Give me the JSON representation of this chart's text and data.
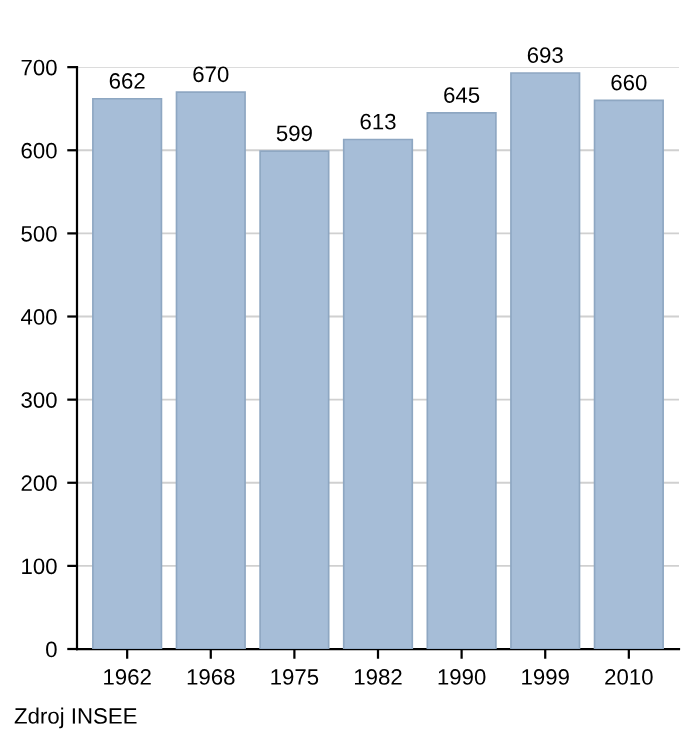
{
  "chart_data": {
    "type": "bar",
    "categories": [
      "1962",
      "1968",
      "1975",
      "1982",
      "1990",
      "1999",
      "2010"
    ],
    "values": [
      662,
      670,
      599,
      613,
      645,
      693,
      660
    ],
    "color": "#a6bdd7",
    "ylim": [
      0,
      700
    ],
    "yticks": [
      0,
      100,
      200,
      300,
      400,
      500,
      600,
      700
    ],
    "grid": "y",
    "data_labels": true,
    "annotations": [
      "Zdroj INSEE"
    ]
  }
}
